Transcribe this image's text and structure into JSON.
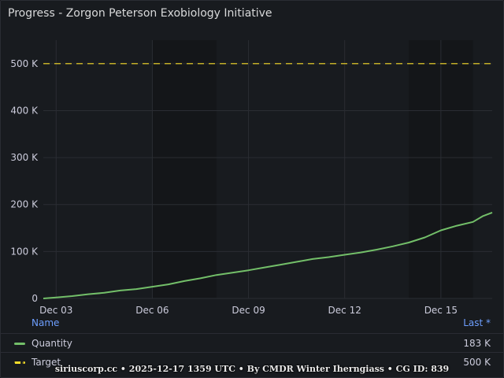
{
  "panel": {
    "title": "Progress - Zorgon Peterson Exobiology Initiative"
  },
  "chart_data": {
    "type": "line",
    "x_ticks": [
      "Dec 03",
      "Dec 06",
      "Dec 09",
      "Dec 12",
      "Dec 15"
    ],
    "y_ticks": [
      "0",
      "100 K",
      "200 K",
      "300 K",
      "400 K",
      "500 K"
    ],
    "ylim": [
      0,
      550000
    ],
    "xlim_days": [
      2.6,
      16.6
    ],
    "series": [
      {
        "name": "Quantity",
        "color": "#73bf69",
        "style": "solid",
        "x_days": [
          2.6,
          3.0,
          3.5,
          4.0,
          4.5,
          5.0,
          5.5,
          6.0,
          6.5,
          7.0,
          7.5,
          8.0,
          8.5,
          9.0,
          9.5,
          10.0,
          10.5,
          11.0,
          11.5,
          12.0,
          12.5,
          13.0,
          13.5,
          14.0,
          14.5,
          15.0,
          15.5,
          16.0,
          16.3,
          16.6
        ],
        "values": [
          0,
          2000,
          5000,
          9000,
          12000,
          17000,
          20000,
          25000,
          30000,
          37000,
          43000,
          50000,
          55000,
          60000,
          66000,
          72000,
          78000,
          84000,
          88000,
          93000,
          98000,
          104000,
          111000,
          119000,
          130000,
          145000,
          155000,
          163000,
          175000,
          183000
        ]
      },
      {
        "name": "Target",
        "color": "#fade2a",
        "style": "dashed",
        "x_days": [
          2.6,
          16.6
        ],
        "values": [
          500000,
          500000
        ]
      }
    ],
    "shaded_bands_days": [
      [
        6.0,
        8.0
      ],
      [
        14.0,
        16.0
      ]
    ],
    "legend_placement": "bottom",
    "grid": true
  },
  "legend": {
    "name_header": "Name",
    "last_header": "Last *",
    "rows": [
      {
        "label": "Quantity",
        "last": "183 K",
        "color": "#73bf69",
        "style": "solid"
      },
      {
        "label": "Target",
        "last": "500 K",
        "color": "#fade2a",
        "style": "dashed"
      }
    ]
  },
  "footer": {
    "text": "siriuscorp.cc • 2025-12-17 1359 UTC • By CMDR Winter Iherngiass • CG ID: 839"
  }
}
